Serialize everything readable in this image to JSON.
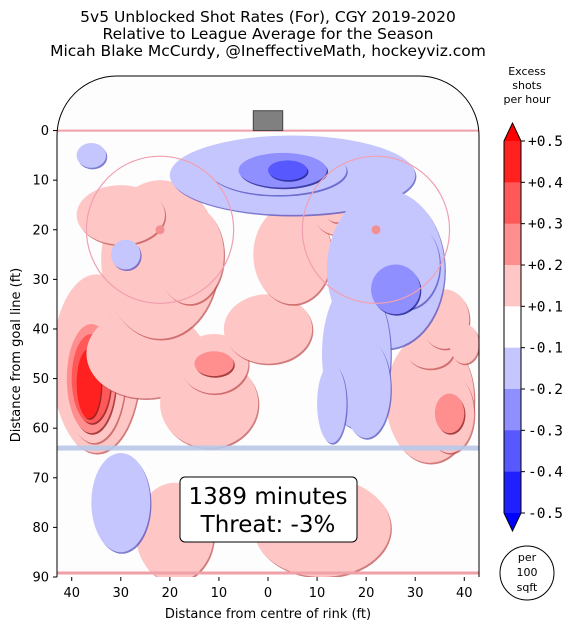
{
  "chart_data": {
    "type": "heatmap",
    "title_lines": [
      "5v5 Unblocked Shot Rates (For), CGY 2019-2020",
      "Relative to League Average for the Season",
      "Micah Blake McCurdy, @IneffectiveMath, hockeyviz.com"
    ],
    "xlabel": "Distance from centre of rink (ft)",
    "ylabel": "Distance from goal line (ft)",
    "x_ticks": [
      "40",
      "30",
      "20",
      "10",
      "0",
      "10",
      "20",
      "30",
      "40"
    ],
    "y_ticks": [
      "0",
      "10",
      "20",
      "30",
      "40",
      "50",
      "60",
      "70",
      "80",
      "90"
    ],
    "xlim": [
      -43,
      43
    ],
    "ylim": [
      90,
      -11
    ],
    "colorbar": {
      "title_lines": [
        "Excess",
        "shots",
        "per hour"
      ],
      "tick_labels": [
        "+0.5",
        "+0.4",
        "+0.3",
        "+0.2",
        "+0.1",
        "-0.1",
        "-0.2",
        "-0.3",
        "-0.4",
        "-0.5"
      ],
      "levels": [
        0.5,
        0.4,
        0.3,
        0.2,
        0.1,
        -0.1,
        -0.2,
        -0.3,
        -0.4,
        -0.5
      ],
      "colors": [
        "#ff2020",
        "#ff5858",
        "#ff8f8f",
        "#ffc6c6",
        "#ffffff",
        "#c6c6ff",
        "#8f8fff",
        "#5858ff",
        "#2020ff"
      ]
    },
    "unit_badge_lines": [
      "per",
      "100",
      "sqft"
    ],
    "annotation_lines": [
      "1389 minutes",
      "Threat: -3%"
    ],
    "regions": [
      {
        "x": -35,
        "y": 47,
        "rx": 9,
        "ry": 18,
        "level": 0.1
      },
      {
        "x": -35.5,
        "y": 49,
        "rx": 6.5,
        "ry": 14,
        "level": 0.2
      },
      {
        "x": -36,
        "y": 50,
        "rx": 5,
        "ry": 11,
        "level": 0.3
      },
      {
        "x": -36,
        "y": 50,
        "rx": 4,
        "ry": 9,
        "level": 0.4
      },
      {
        "x": -36.5,
        "y": 51,
        "rx": 2.5,
        "ry": 7,
        "level": 0.5
      },
      {
        "x": -25,
        "y": 45,
        "rx": 12,
        "ry": 9,
        "level": 0.1
      },
      {
        "x": -12,
        "y": 55,
        "rx": 10,
        "ry": 9,
        "level": 0.1
      },
      {
        "x": -22,
        "y": 26,
        "rx": 12,
        "ry": 16,
        "level": 0.1
      },
      {
        "x": -16,
        "y": 25,
        "rx": 7,
        "ry": 10,
        "level": 0.2
      },
      {
        "x": -30,
        "y": 17,
        "rx": 9,
        "ry": 6,
        "level": 0.1
      },
      {
        "x": -11,
        "y": 47,
        "rx": 7,
        "ry": 6,
        "level": 0.2
      },
      {
        "x": -11,
        "y": 47,
        "rx": 4,
        "ry": 2.5,
        "level": 0.3
      },
      {
        "x": 0,
        "y": 40,
        "rx": 9,
        "ry": 7,
        "level": 0.1
      },
      {
        "x": 5,
        "y": 25,
        "rx": 8,
        "ry": 10,
        "level": 0.1
      },
      {
        "x": 14,
        "y": 16,
        "rx": 5,
        "ry": 5,
        "level": 0.1
      },
      {
        "x": 14,
        "y": 16,
        "rx": 2.5,
        "ry": 2.5,
        "level": 0.2
      },
      {
        "x": 33,
        "y": 54,
        "rx": 9,
        "ry": 13,
        "level": 0.1
      },
      {
        "x": 37,
        "y": 57,
        "rx": 5,
        "ry": 8,
        "level": 0.2
      },
      {
        "x": 37,
        "y": 57,
        "rx": 3,
        "ry": 4,
        "level": 0.3
      },
      {
        "x": 33,
        "y": 44,
        "rx": 5,
        "ry": 4,
        "level": 0.2
      },
      {
        "x": 36,
        "y": 38,
        "rx": 5,
        "ry": 6,
        "level": 0.1
      },
      {
        "x": 40,
        "y": 43,
        "rx": 3,
        "ry": 4,
        "level": 0.2
      },
      {
        "x": -19,
        "y": 81,
        "rx": 8,
        "ry": 10,
        "level": 0.1
      },
      {
        "x": 11,
        "y": 80,
        "rx": 14,
        "ry": 10,
        "level": 0.1
      },
      {
        "x": -7,
        "y": 10,
        "rx": 4,
        "ry": 3,
        "level": 0.1
      },
      {
        "x": 5,
        "y": 9,
        "rx": 25,
        "ry": 8,
        "level": -0.1
      },
      {
        "x": 24,
        "y": 28,
        "rx": 12,
        "ry": 16,
        "level": -0.1
      },
      {
        "x": 18,
        "y": 45,
        "rx": 7,
        "ry": 15,
        "level": -0.1
      },
      {
        "x": 28,
        "y": 27,
        "rx": 7,
        "ry": 9,
        "level": -0.2
      },
      {
        "x": 26,
        "y": 32,
        "rx": 5,
        "ry": 5,
        "level": -0.3
      },
      {
        "x": 20,
        "y": 52,
        "rx": 5,
        "ry": 10,
        "level": -0.2
      },
      {
        "x": 2,
        "y": 8,
        "rx": 14,
        "ry": 5,
        "level": -0.2
      },
      {
        "x": 3,
        "y": 8,
        "rx": 9,
        "ry": 3.5,
        "level": -0.3
      },
      {
        "x": 4,
        "y": 8,
        "rx": 4,
        "ry": 2,
        "level": -0.4
      },
      {
        "x": -30,
        "y": 75,
        "rx": 6,
        "ry": 10,
        "level": -0.1
      },
      {
        "x": -36,
        "y": 5,
        "rx": 3,
        "ry": 2.5,
        "level": -0.1
      },
      {
        "x": -29,
        "y": 25,
        "rx": 3,
        "ry": 3,
        "level": -0.1
      },
      {
        "x": 13,
        "y": 55,
        "rx": 3,
        "ry": 8,
        "level": -0.1
      }
    ]
  }
}
